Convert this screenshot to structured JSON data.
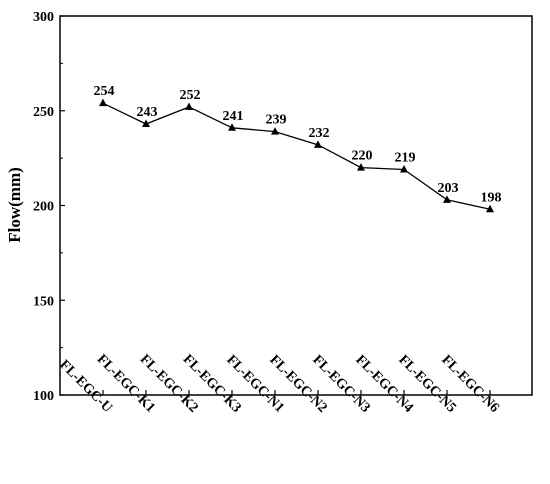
{
  "chart_data": {
    "type": "line",
    "title": "",
    "xlabel": "",
    "ylabel": "Flow(mm)",
    "categories": [
      "FL-EGC-U",
      "FL-EGC-K1",
      "FL-EGC-K2",
      "FL-EGC-K3",
      "FL-EGC-N1",
      "FL-EGC-N2",
      "FL-EGC-N3",
      "FL-EGC-N4",
      "FL-EGC-N5",
      "FL-EGC-N6"
    ],
    "series": [
      {
        "values": [
          254,
          243,
          252,
          241,
          239,
          232,
          220,
          219,
          203,
          198
        ]
      }
    ],
    "data_labels": [
      "254",
      "243",
      "252",
      "241",
      "239",
      "232",
      "220",
      "219",
      "203",
      "198"
    ],
    "ylim": [
      100,
      300
    ],
    "yticks": [
      100,
      150,
      200,
      250,
      300
    ],
    "ytick_labels": [
      "100",
      "150",
      "200",
      "250",
      "300"
    ],
    "marker": "triangle",
    "grid": false,
    "legend": "none",
    "colors": {
      "line": "#000000",
      "axis": "#000000",
      "background": "#ffffff"
    }
  }
}
